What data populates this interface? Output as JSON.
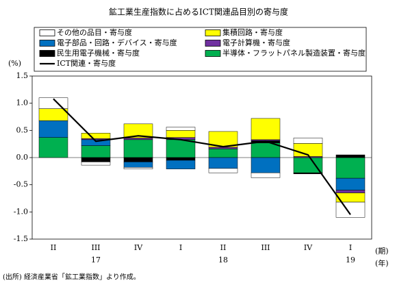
{
  "chart_data": {
    "type": "stacked_bar_line",
    "title": "鉱工業生産指数に占めるICT関連品目別の寄与度",
    "y_unit": "(%)",
    "x_unit": "(期)",
    "year_unit": "(年)",
    "source": "(出所) 経済産業省「鉱工業指数」より作成。",
    "categories": [
      "II",
      "III",
      "IV",
      "I",
      "II",
      "III",
      "IV",
      "I"
    ],
    "year_categories": [
      null,
      "17",
      null,
      null,
      "18",
      null,
      null,
      "19"
    ],
    "ylim": [
      -1.5,
      1.5
    ],
    "yticks": [
      1.5,
      {
        "value": 1,
        "label": "1.0"
      },
      0.5,
      {
        "value": 0,
        "label": "0.0"
      },
      -0.5,
      {
        "value": -1,
        "label": "-1.0"
      },
      -1.5
    ],
    "series": [
      {
        "name": "その他の品目・寄与度",
        "color": "#ffffff",
        "values": [
          0.2,
          -0.06,
          -0.03,
          0.06,
          -0.08,
          -0.09,
          0.1,
          -0.28
        ]
      },
      {
        "name": "集積回路・寄与度",
        "color": "#ffff00",
        "values": [
          0.22,
          0.1,
          0.26,
          0.13,
          0.29,
          0.39,
          0.24,
          -0.17
        ]
      },
      {
        "name": "電子部品・回路・デバイス・寄与度",
        "color": "#0070c0",
        "values": [
          0.31,
          0.11,
          -0.1,
          -0.16,
          -0.2,
          -0.28,
          0,
          -0.22
        ]
      },
      {
        "name": "電子計算機・寄与度",
        "color": "#7030a0",
        "values": [
          0,
          0.02,
          0.03,
          0.04,
          0.03,
          0.02,
          0.02,
          -0.05
        ]
      },
      {
        "name": "民生用電子機械・寄与度",
        "color": "#000000",
        "values": [
          0,
          -0.08,
          -0.08,
          -0.05,
          0,
          0.04,
          -0.02,
          0.05
        ]
      },
      {
        "name": "半導体・フラットパネル製造装置・寄与度",
        "color": "#00b050",
        "values": [
          0.37,
          0.22,
          0.33,
          0.33,
          0.16,
          0.27,
          -0.28,
          -0.38
        ]
      },
      {
        "name": "ICT関連・寄与度",
        "type": "line",
        "color": "#000000",
        "values": [
          1.08,
          0.3,
          0.4,
          0.33,
          0.2,
          0.3,
          0.05,
          -1.05
        ]
      }
    ]
  }
}
